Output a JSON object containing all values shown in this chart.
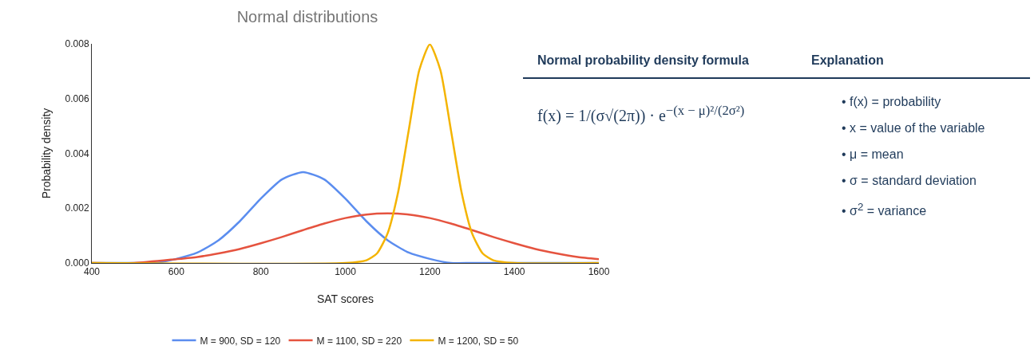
{
  "chart_data": [
    {
      "type": "line",
      "title": "Normal distributions",
      "xlabel": "SAT scores",
      "ylabel": "Probability density",
      "xlim": [
        400,
        1600
      ],
      "xticks": [
        400,
        600,
        800,
        1000,
        1200,
        1400,
        1600
      ],
      "ylim": [
        0,
        0.008
      ],
      "yticks": [
        {
          "value": 0,
          "label": "0.000"
        },
        {
          "value": 0.002,
          "label": "0.002"
        },
        {
          "value": 0.004,
          "label": "0.004"
        },
        {
          "value": 0.006,
          "label": "0.006"
        },
        {
          "value": 0.008,
          "label": "0.008"
        }
      ],
      "grid": false,
      "legend": "bottom",
      "marker": "none",
      "line_style": "solid",
      "series": [
        {
          "name": "M = 900, SD = 120",
          "color": "#5b8def",
          "x": [
            400,
            500,
            550,
            600,
            650,
            700,
            750,
            800,
            850,
            900,
            950,
            1000,
            1050,
            1100,
            1150,
            1200,
            1250,
            1300,
            1400,
            1600
          ],
          "values": [
            0,
            0,
            0,
            0.00015,
            0.00038,
            0.00083,
            0.00152,
            0.00235,
            0.00305,
            0.00332,
            0.00305,
            0.00235,
            0.00152,
            0.00083,
            0.00038,
            0.00015,
            0,
            0,
            0,
            0
          ]
        },
        {
          "name": "M = 1100, SD = 220",
          "color": "#e5533f",
          "x": [
            400,
            500,
            600,
            650,
            700,
            750,
            800,
            850,
            900,
            950,
            1000,
            1050,
            1100,
            1150,
            1200,
            1250,
            1300,
            1350,
            1400,
            1450,
            1500,
            1550,
            1600
          ],
          "values": [
            0,
            0,
            0.00014,
            0.00022,
            0.00035,
            0.00051,
            0.00072,
            0.00095,
            0.0012,
            0.00144,
            0.00164,
            0.00177,
            0.00181,
            0.00177,
            0.00164,
            0.00144,
            0.0012,
            0.00095,
            0.00072,
            0.00051,
            0.00035,
            0.00022,
            0.00014
          ]
        },
        {
          "name": "M = 1200, SD = 50",
          "color": "#f4b400",
          "x": [
            400,
            1000,
            1050,
            1075,
            1100,
            1125,
            1150,
            1175,
            1200,
            1225,
            1250,
            1275,
            1300,
            1325,
            1350,
            1400,
            1600
          ],
          "values": [
            0,
            0,
            0.0001,
            0.00035,
            0.00108,
            0.00259,
            0.00484,
            0.00704,
            0.00798,
            0.00704,
            0.00484,
            0.00259,
            0.00108,
            0.00035,
            0.0001,
            0,
            0
          ]
        }
      ]
    },
    {
      "type": "other",
      "annotations": [
        "Normal probability density formula",
        "Explanation",
        "f(x) = 1/(σ√(2π)) · e$^{−(x − μ)²/(2σ²)}$",
        "• f(x) = probability",
        "• x = value of the variable",
        "• μ = mean",
        "• σ = standard deviation",
        "• σ$^{2}$ = variance"
      ]
    }
  ]
}
